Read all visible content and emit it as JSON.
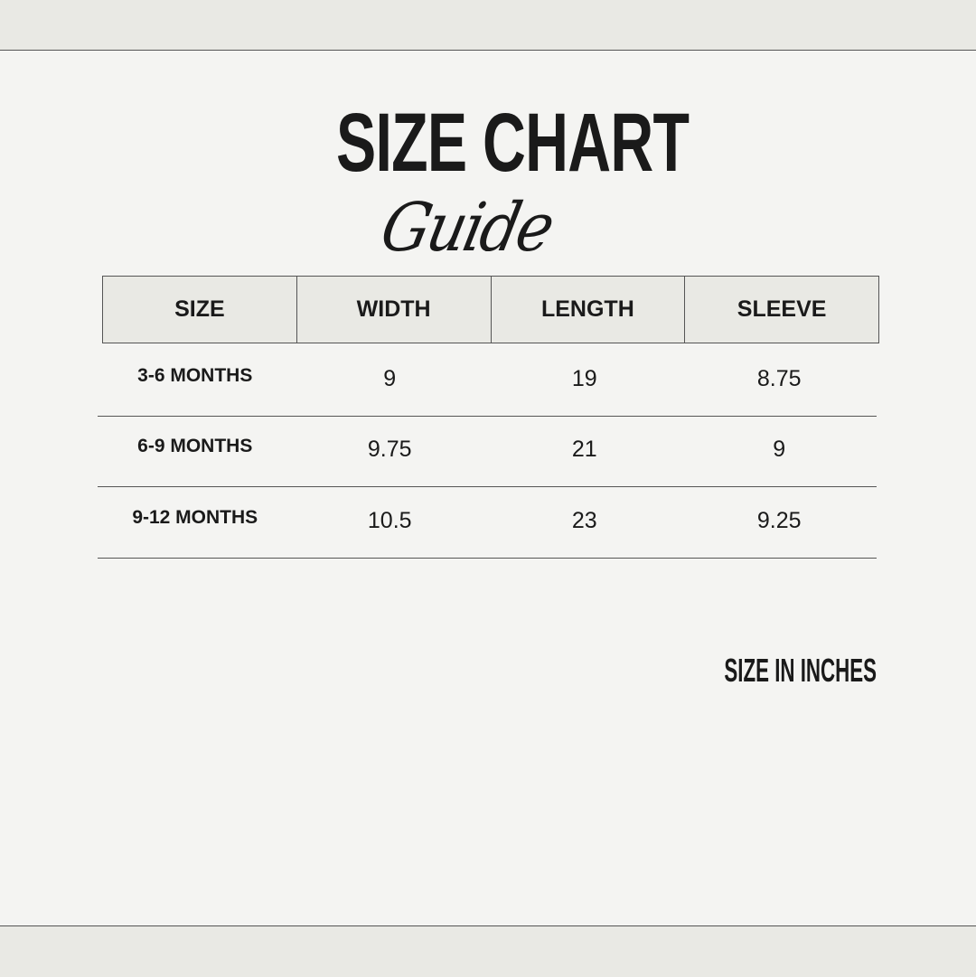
{
  "title": {
    "main": "SIZE CHART",
    "script": "Guide"
  },
  "table": {
    "headers": [
      "SIZE",
      "WIDTH",
      "LENGTH",
      "SLEEVE"
    ],
    "rows": [
      [
        "3-6 MONTHS",
        "9",
        "19",
        "8.75"
      ],
      [
        "6-9 MONTHS",
        "9.75",
        "21",
        "9"
      ],
      [
        "9-12 MONTHS",
        "10.5",
        "23",
        "9.25"
      ]
    ]
  },
  "note": "SIZE IN INCHES",
  "colors": {
    "background": "#f4f4f2",
    "band": "#e9e9e4",
    "text": "#1a1a1a",
    "border": "#555555"
  }
}
